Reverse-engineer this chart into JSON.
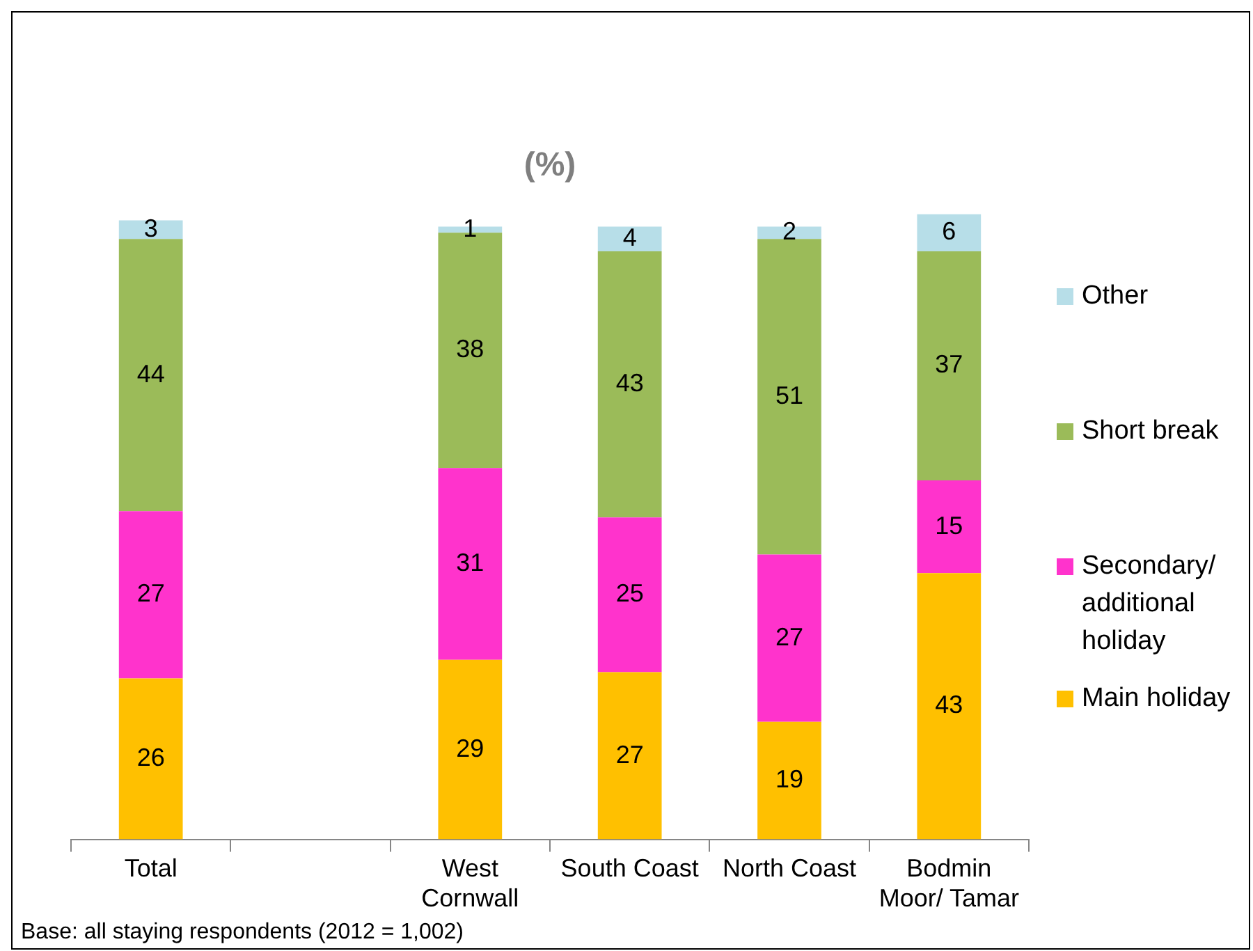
{
  "chart_data": {
    "type": "bar",
    "title": "(%)",
    "stacked": true,
    "categories": [
      "Total",
      null,
      "West Cornwall",
      "South Coast",
      "North Coast",
      "Bodmin Moor/ Tamar"
    ],
    "series": [
      {
        "name": "Main holiday",
        "color": "#ffc000",
        "values": [
          26,
          null,
          29,
          27,
          19,
          43
        ]
      },
      {
        "name": "Secondary/ additional holiday",
        "color": "#ff33cc",
        "values": [
          27,
          null,
          31,
          25,
          27,
          15
        ]
      },
      {
        "name": "Short break",
        "color": "#9bbb59",
        "values": [
          44,
          null,
          38,
          43,
          51,
          37
        ]
      },
      {
        "name": "Other",
        "color": "#b7dee8",
        "values": [
          3,
          null,
          1,
          4,
          2,
          6
        ]
      }
    ],
    "ylim": [
      0,
      101
    ],
    "tick_labels": "x",
    "data_labels": true,
    "legend": "right",
    "annotations": [
      "Base: all staying respondents (2012 = 1,002)"
    ]
  }
}
